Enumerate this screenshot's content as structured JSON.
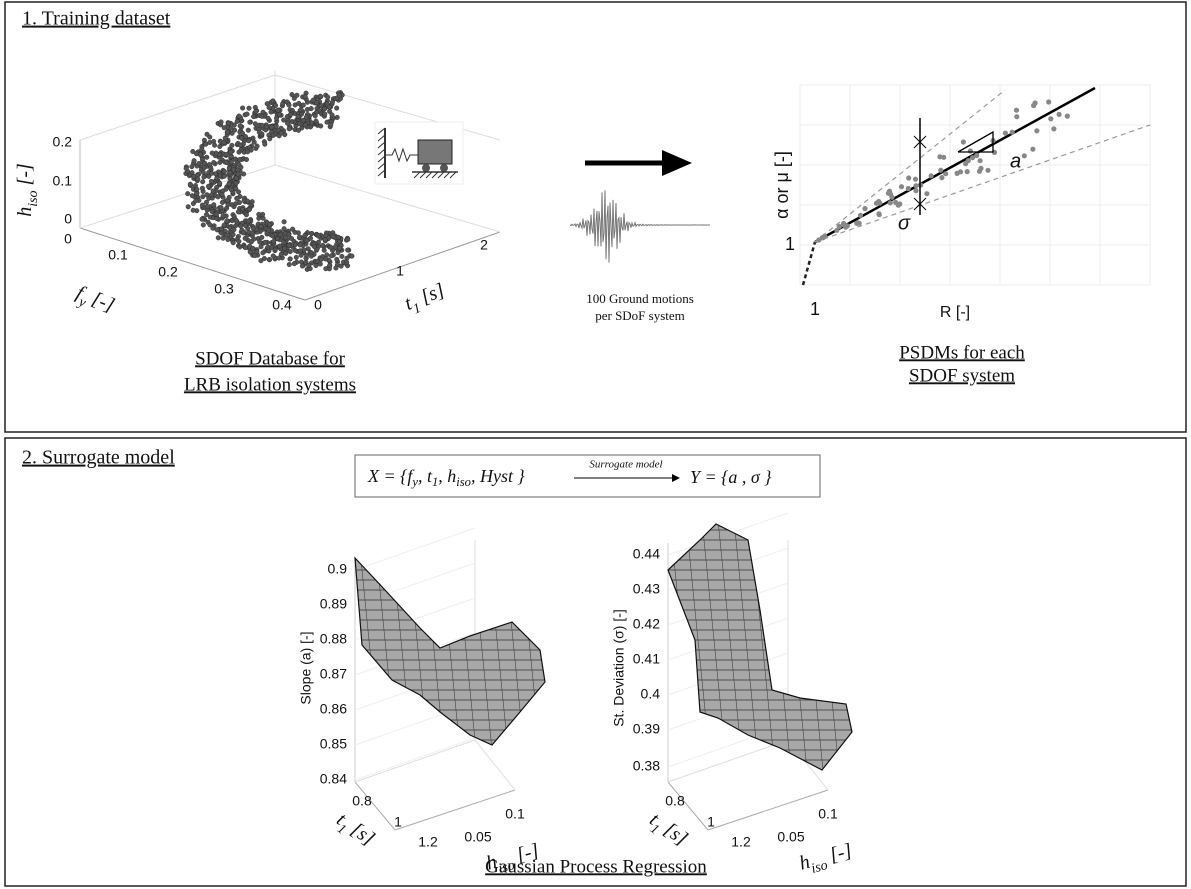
{
  "panel1": {
    "title": "1. Training dataset",
    "scatter": {
      "z_label": {
        "main": "h",
        "sub": "iso",
        "rest": " [-]"
      },
      "z_ticks": [
        "0.2",
        "0.1",
        "0"
      ],
      "x_label": {
        "main": "f",
        "sub": "y",
        "rest": " [-]"
      },
      "x_ticks": [
        "0",
        "0.1",
        "0.2",
        "0.3",
        "0.4"
      ],
      "y_label": {
        "main": "t",
        "sub": "1",
        "rest": " [s]"
      },
      "y_ticks": [
        "0",
        "1",
        "2"
      ],
      "caption": [
        "SDOF Database for",
        "LRB isolation systems"
      ]
    },
    "ground_motion_caption": [
      "100 Ground motions",
      "per SDoF system"
    ],
    "psdm": {
      "y_label": "α or μ [-]",
      "x_label": "R [-]",
      "y_tick": "1",
      "x_tick": "1",
      "slope_label": "a",
      "sigma_label": "σ",
      "caption": [
        "PSDMs for each",
        "SDOF system"
      ]
    }
  },
  "panel2": {
    "title": "2. Surrogate model",
    "equation": {
      "input": [
        {
          "main": "X = {f",
          "sub": "y"
        },
        {
          "main": ", t",
          "sub": "1"
        },
        {
          "main": ", h",
          "sub": "iso"
        },
        {
          "main": ", Hyst }"
        }
      ],
      "arrow_label": "Surrogate model",
      "output": "Y = {a , σ }"
    },
    "surface_plots": [
      {
        "z_label": "Slope (a) [-]",
        "z_ticks": [
          "0.9",
          "0.89",
          "0.88",
          "0.87",
          "0.86",
          "0.85",
          "0.84"
        ],
        "x_label": {
          "main": "t",
          "sub": "1",
          "rest": " [s]"
        },
        "x_ticks": [
          "0.8",
          "1",
          "1.2"
        ],
        "y_label": {
          "main": "h",
          "sub": "iso",
          "rest": " [-]"
        },
        "y_ticks": [
          "0.05",
          "0.1"
        ]
      },
      {
        "z_label": "St. Deviation (σ) [-]",
        "z_ticks": [
          "0.44",
          "0.43",
          "0.42",
          "0.41",
          "0.4",
          "0.39",
          "0.38"
        ],
        "x_label": {
          "main": "t",
          "sub": "1",
          "rest": " [s]"
        },
        "x_ticks": [
          "0.8",
          "1",
          "1.2"
        ],
        "y_label": {
          "main": "h",
          "sub": "iso",
          "rest": " [-]"
        },
        "y_ticks": [
          "0.05",
          "0.1"
        ]
      }
    ],
    "caption": "Gaussian Process Regression"
  }
}
